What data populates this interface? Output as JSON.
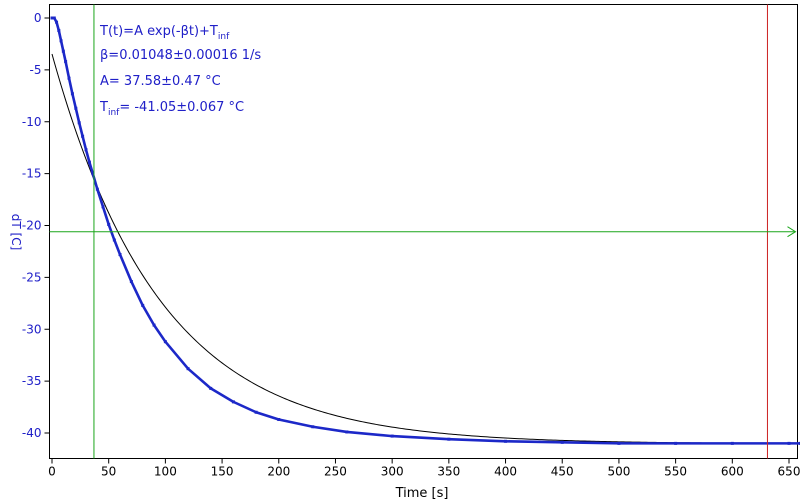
{
  "chart_data": {
    "type": "scatter",
    "xlabel": "Time [s]",
    "ylabel": "dT [C]",
    "xlim": [
      0,
      660
    ],
    "ylim": [
      -42.5,
      1.3
    ],
    "x_ticks": [
      0,
      50,
      100,
      150,
      200,
      250,
      300,
      350,
      400,
      450,
      500,
      550,
      600,
      650
    ],
    "y_ticks": [
      0,
      -5,
      -10,
      -15,
      -20,
      -25,
      -30,
      -35,
      -40
    ],
    "grid": false,
    "annotations": {
      "formula": {
        "main": "T(t)=A exp(-βt)+T",
        "sub": "inf"
      },
      "beta": "β=0.01048±0.00016 1/s",
      "amplitude": "A= 37.58±0.47 °C",
      "t_inf": {
        "main": "T",
        "sub": "inf",
        "rest": "= -41.05±0.067 °C"
      }
    },
    "fit": {
      "A": 37.58,
      "beta": 0.01048,
      "T_inf": -41.05,
      "x_range": [
        0,
        660
      ]
    },
    "markers": {
      "vertical_green_x": 37,
      "vertical_red_x": 631,
      "horizontal_green_y": -20.6
    },
    "series": [
      {
        "kind": "measured",
        "x": [
          0,
          2,
          4,
          6,
          8,
          10,
          12,
          15,
          18,
          21,
          24,
          27,
          30,
          33,
          36,
          40,
          45,
          50,
          55,
          60,
          70,
          80,
          90,
          100,
          120,
          140,
          160,
          180,
          200,
          230,
          260,
          300,
          350,
          400,
          450,
          500,
          550,
          600,
          650,
          660
        ],
        "y": [
          0,
          0,
          -0.4,
          -1.2,
          -2.2,
          -3.2,
          -4.2,
          -5.8,
          -7.3,
          -8.7,
          -10.1,
          -11.4,
          -12.7,
          -13.9,
          -15.0,
          -16.5,
          -18.2,
          -19.9,
          -21.4,
          -22.8,
          -25.4,
          -27.7,
          -29.6,
          -31.2,
          -33.8,
          -35.7,
          -37.0,
          -38.0,
          -38.7,
          -39.4,
          -39.9,
          -40.3,
          -40.6,
          -40.8,
          -40.9,
          -41.0,
          -41.0,
          -41.0,
          -41.0,
          -41.0
        ]
      }
    ]
  },
  "colors": {
    "data": "#1c28c8",
    "fit": "#000000",
    "green": "#1aa51a",
    "red": "#cc2020",
    "tick_y": "#2020c8"
  }
}
